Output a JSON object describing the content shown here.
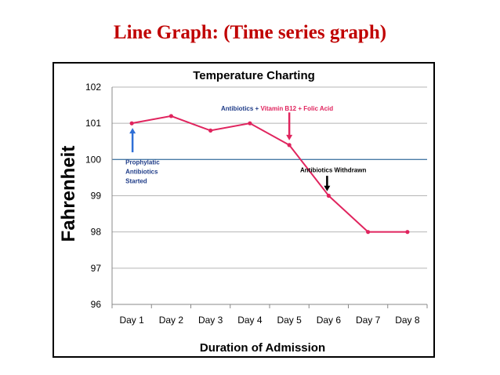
{
  "slide": {
    "title": "Line Graph: (Time series graph)"
  },
  "chart_data": {
    "type": "line",
    "title": "Temperature Charting",
    "xlabel": "Duration of Admission",
    "ylabel": "Fahrenheit",
    "categories": [
      "Day 1",
      "Day 2",
      "Day 3",
      "Day 4",
      "Day 5",
      "Day 6",
      "Day 7",
      "Day 8"
    ],
    "series": [
      {
        "values": [
          101.0,
          101.2,
          100.8,
          101.0,
          100.4,
          99.0,
          98.0,
          98.0
        ],
        "color": "#e0245e"
      }
    ],
    "ylim": [
      96,
      102
    ],
    "yticks": [
      "96",
      "97",
      "98",
      "99",
      "100",
      "101",
      "102"
    ],
    "grid": true,
    "reference_line": 100,
    "annotations": [
      {
        "lines": [
          "Prophylatic",
          "Antibiotics",
          "Started"
        ],
        "color": "#1f3c88",
        "arrow_color": "#2f6fd6"
      },
      {
        "parts": [
          {
            "text": "Antibiotics + ",
            "color": "#1f3c88"
          },
          {
            "text": "Vitamin B12 + Folic Acid",
            "color": "#e0245e"
          }
        ],
        "arrow_color": "#e0245e"
      },
      {
        "lines": [
          "Antibiotics Withdrawn"
        ],
        "color": "#000000",
        "arrow_color": "#000000"
      }
    ]
  }
}
